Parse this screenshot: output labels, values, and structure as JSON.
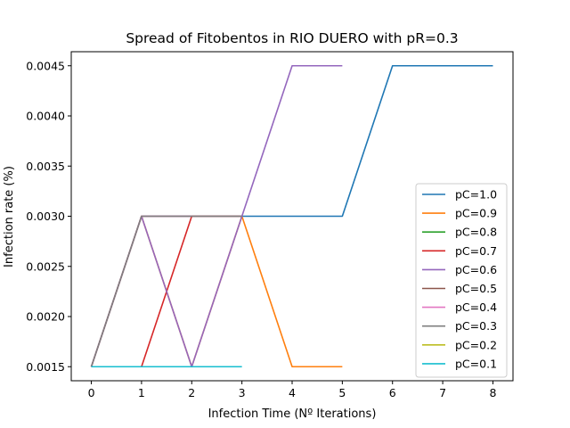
{
  "chart_data": {
    "type": "line",
    "title": "Spread of Fitobentos in RIO DUERO with pR=0.3",
    "xlabel": "Infection Time (Nº Iterations)",
    "ylabel": "Infection rate (%)",
    "xlim": [
      -0.4,
      8.4
    ],
    "ylim": [
      0.00136,
      0.00464
    ],
    "xticks": [
      0,
      1,
      2,
      3,
      4,
      5,
      6,
      7,
      8
    ],
    "yticks": [
      "0.0015",
      "0.0020",
      "0.0025",
      "0.0030",
      "0.0035",
      "0.0040",
      "0.0045"
    ],
    "legend_position": "lower-right",
    "series": [
      {
        "name": "pC=1.0",
        "color": "#1f77b4",
        "x": [
          0,
          1,
          2,
          3,
          4,
          5,
          6,
          7,
          8
        ],
        "y": [
          0.0015,
          0.003,
          0.003,
          0.003,
          0.003,
          0.003,
          0.0045,
          0.0045,
          0.0045
        ]
      },
      {
        "name": "pC=0.9",
        "color": "#ff7f0e",
        "x": [
          0,
          1,
          2,
          3,
          4,
          5
        ],
        "y": [
          0.0015,
          0.003,
          0.0015,
          0.003,
          0.0015,
          0.0015
        ]
      },
      {
        "name": "pC=0.8",
        "color": "#2ca02c",
        "x": [
          0,
          1
        ],
        "y": [
          0.0015,
          0.0015
        ]
      },
      {
        "name": "pC=0.7",
        "color": "#d62728",
        "x": [
          0,
          1,
          2,
          3
        ],
        "y": [
          0.0015,
          0.0015,
          0.003,
          0.003
        ]
      },
      {
        "name": "pC=0.6",
        "color": "#9467bd",
        "x": [
          0,
          1,
          2,
          3,
          4,
          5
        ],
        "y": [
          0.0015,
          0.003,
          0.0015,
          0.003,
          0.0045,
          0.0045
        ]
      },
      {
        "name": "pC=0.5",
        "color": "#8c564b",
        "x": [
          0,
          1,
          2
        ],
        "y": [
          0.0015,
          0.003,
          0.003
        ]
      },
      {
        "name": "pC=0.4",
        "color": "#e377c2",
        "x": [
          0,
          1,
          2
        ],
        "y": [
          0.0015,
          0.003,
          0.003
        ]
      },
      {
        "name": "pC=0.3",
        "color": "#7f7f7f",
        "x": [
          0,
          1,
          2,
          3
        ],
        "y": [
          0.0015,
          0.003,
          0.003,
          0.003
        ]
      },
      {
        "name": "pC=0.2",
        "color": "#bcbd22",
        "x": [
          0,
          1
        ],
        "y": [
          0.0015,
          0.0015
        ]
      },
      {
        "name": "pC=0.1",
        "color": "#17becf",
        "x": [
          0,
          1,
          2,
          3
        ],
        "y": [
          0.0015,
          0.0015,
          0.0015,
          0.0015
        ]
      }
    ]
  }
}
